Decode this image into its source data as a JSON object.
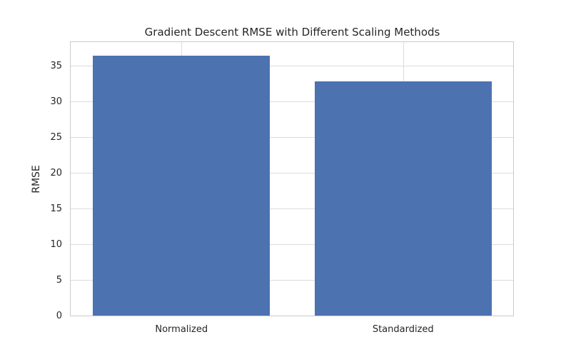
{
  "chart_data": {
    "type": "bar",
    "title": "Gradient Descent RMSE with Different Scaling Methods",
    "xlabel": "",
    "ylabel": "RMSE",
    "categories": [
      "Normalized",
      "Standardized"
    ],
    "values": [
      36.5,
      32.9
    ],
    "yticks": [
      0,
      5,
      10,
      15,
      20,
      25,
      30,
      35
    ],
    "ylim": [
      0,
      38.4
    ],
    "bar_color": "#4C72B0",
    "grid": true,
    "grid_color": "#dcdcdc",
    "axes_edge_color": "#cbcbcb",
    "text_color": "#262626",
    "background_color": "#ffffff",
    "legend": "none"
  }
}
